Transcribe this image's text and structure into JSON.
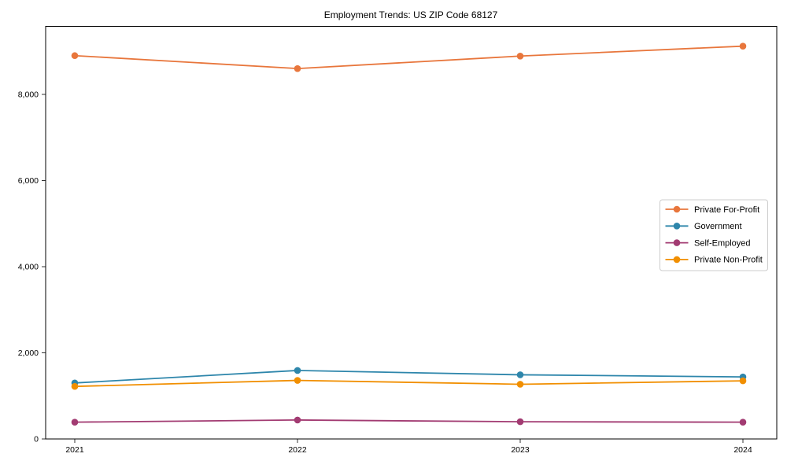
{
  "chart_data": {
    "type": "line",
    "title": "Employment Trends: US ZIP Code 68127",
    "xlabel": "",
    "ylabel": "",
    "categories": [
      "2021",
      "2022",
      "2023",
      "2024"
    ],
    "series": [
      {
        "name": "Private For-Profit",
        "color": "#e8763c",
        "marker": "circle",
        "values": [
          8900,
          8600,
          8890,
          9120
        ]
      },
      {
        "name": "Government",
        "color": "#2e86ab",
        "marker": "circle",
        "values": [
          1300,
          1590,
          1490,
          1440
        ]
      },
      {
        "name": "Self-Employed",
        "color": "#a23b72",
        "marker": "circle",
        "values": [
          390,
          440,
          400,
          390
        ]
      },
      {
        "name": "Private Non-Profit",
        "color": "#f18f01",
        "marker": "circle",
        "values": [
          1220,
          1360,
          1270,
          1350
        ]
      }
    ],
    "ylim": [
      0,
      9580
    ],
    "yticks": [
      0,
      2000,
      4000,
      6000,
      8000
    ],
    "ytick_labels": [
      "0",
      "2,000",
      "4,000",
      "6,000",
      "8,000"
    ],
    "grid": false,
    "legend_position": "center right",
    "spine_box": true,
    "colors": {
      "axis": "#000000",
      "legend_border": "#cccccc",
      "legend_background": "#ffffff",
      "figure_background": "#ffffff"
    }
  }
}
